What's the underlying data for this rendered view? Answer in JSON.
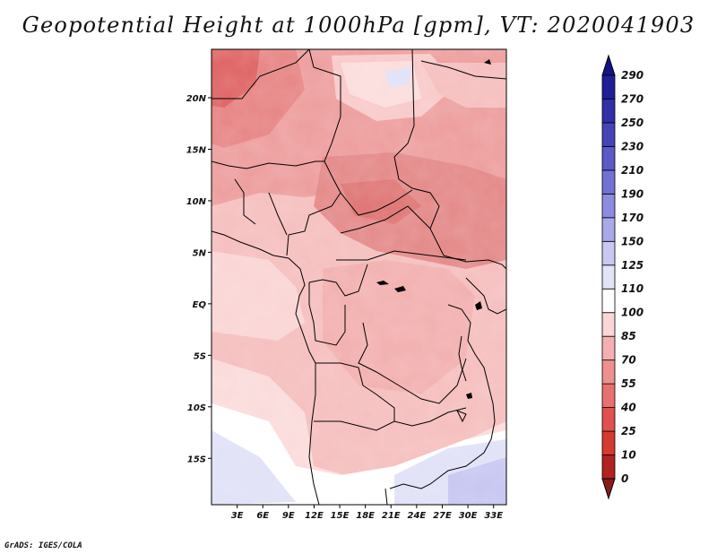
{
  "title": "Geopotential Height at 1000hPa [gpm], VT: 2020041903",
  "footer": "GrADS: IGES/COLA",
  "chart_data": {
    "type": "heatmap",
    "x_ticks": [
      "3E",
      "6E",
      "9E",
      "12E",
      "15E",
      "18E",
      "21E",
      "24E",
      "27E",
      "30E",
      "33E"
    ],
    "x_values": [
      3,
      6,
      9,
      12,
      15,
      18,
      21,
      24,
      27,
      30,
      33
    ],
    "y_ticks": [
      "20N",
      "15N",
      "10N",
      "5N",
      "EQ",
      "5S",
      "10S",
      "15S"
    ],
    "y_values": [
      20,
      15,
      10,
      5,
      0,
      -5,
      -10,
      -15
    ],
    "xlim": [
      0,
      34.5
    ],
    "ylim": [
      -19.5,
      24.7
    ],
    "colorbar": {
      "levels": [
        0,
        10,
        25,
        40,
        55,
        70,
        85,
        100,
        110,
        125,
        150,
        170,
        190,
        210,
        230,
        250,
        270,
        290
      ],
      "colors": [
        "#8b1a1a",
        "#b22222",
        "#d43a30",
        "#e05050",
        "#e87070",
        "#ee9090",
        "#f4b0b0",
        "#fbd6d6",
        "#ffffff",
        "#e2e2f8",
        "#c8c8f2",
        "#aaaaea",
        "#8c8ce0",
        "#7272d6",
        "#5a5ac8",
        "#4444b8",
        "#3030a8",
        "#1e1e96",
        "#12128a"
      ]
    }
  }
}
